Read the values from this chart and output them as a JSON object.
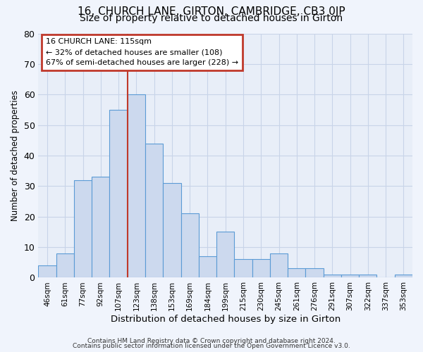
{
  "title1": "16, CHURCH LANE, GIRTON, CAMBRIDGE, CB3 0JP",
  "title2": "Size of property relative to detached houses in Girton",
  "xlabel": "Distribution of detached houses by size in Girton",
  "ylabel": "Number of detached properties",
  "bar_labels": [
    "46sqm",
    "61sqm",
    "77sqm",
    "92sqm",
    "107sqm",
    "123sqm",
    "138sqm",
    "153sqm",
    "169sqm",
    "184sqm",
    "199sqm",
    "215sqm",
    "230sqm",
    "245sqm",
    "261sqm",
    "276sqm",
    "291sqm",
    "307sqm",
    "322sqm",
    "337sqm",
    "353sqm"
  ],
  "bar_values": [
    4,
    8,
    32,
    33,
    55,
    60,
    44,
    31,
    21,
    7,
    15,
    6,
    6,
    8,
    3,
    3,
    1,
    1,
    1,
    0,
    1
  ],
  "bar_color": "#ccd9ee",
  "bar_edge_color": "#5b9bd5",
  "ylim": [
    0,
    80
  ],
  "yticks": [
    0,
    10,
    20,
    30,
    40,
    50,
    60,
    70,
    80
  ],
  "vline_x_idx": 5,
  "vline_color": "#c0392b",
  "annotation_title": "16 CHURCH LANE: 115sqm",
  "annotation_line1": "← 32% of detached houses are smaller (108)",
  "annotation_line2": "67% of semi-detached houses are larger (228) →",
  "annotation_box_color": "#ffffff",
  "annotation_box_edge": "#c0392b",
  "footer1": "Contains HM Land Registry data © Crown copyright and database right 2024.",
  "footer2": "Contains public sector information licensed under the Open Government Licence v3.0.",
  "background_color": "#e8eef8",
  "plot_bg_color": "#e8eef8",
  "grid_color": "#c8d4e8",
  "title1_fontsize": 11,
  "title2_fontsize": 10
}
